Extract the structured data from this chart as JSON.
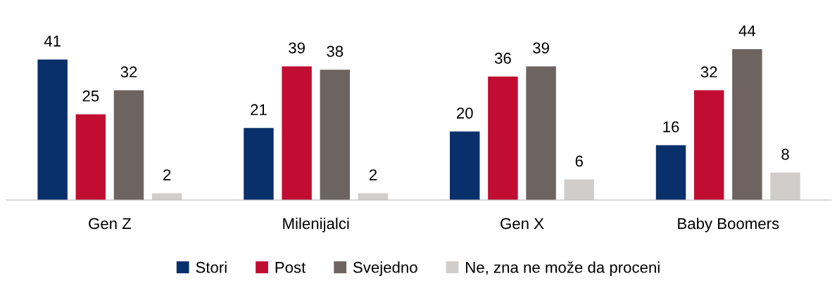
{
  "chart_data": {
    "type": "bar",
    "categories": [
      "Gen Z",
      "Milenijalci",
      "Gen X",
      "Baby Boomers"
    ],
    "series": [
      {
        "name": "Stori",
        "color": "#0a306b",
        "values": [
          41,
          21,
          20,
          16
        ]
      },
      {
        "name": "Post",
        "color": "#c00d31",
        "values": [
          25,
          39,
          36,
          32
        ]
      },
      {
        "name": "Svejedno",
        "color": "#6d6462",
        "values": [
          32,
          38,
          39,
          44
        ]
      },
      {
        "name": "Ne, zna ne može da proceni",
        "color": "#d0cdca",
        "values": [
          2,
          2,
          6,
          8
        ]
      }
    ],
    "data_labels": true,
    "grid": false,
    "legend": "bottom"
  }
}
